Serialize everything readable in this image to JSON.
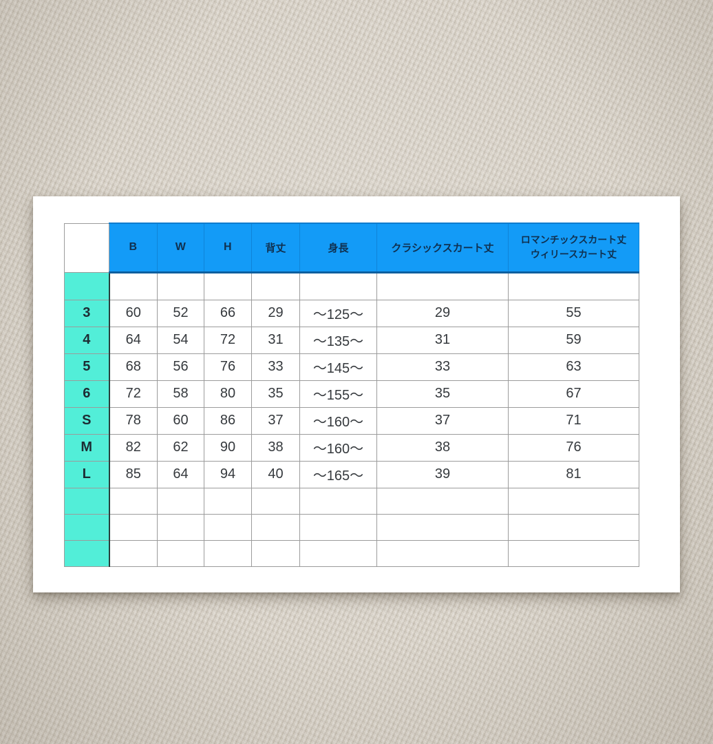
{
  "colors": {
    "background_fabric": "#d8d2c8",
    "card": "#ffffff",
    "header_blue": "#139bf7",
    "header_border_blue": "#0d5f9f",
    "header_text": "#10304f",
    "size_column_teal": "#52eed8",
    "grid_line": "#9b9b9b",
    "data_text": "#35393d"
  },
  "table": {
    "header": [
      "B",
      "W",
      "H",
      "背丈",
      "身長",
      "クラシックスカート丈"
    ],
    "header_last": {
      "line1": "ロマンチックスカート丈",
      "line2": "ウィリースカート丈"
    },
    "rows": [
      {
        "size": "3",
        "cells": [
          "60",
          "52",
          "66",
          "29",
          "〜125〜",
          "29",
          "55"
        ]
      },
      {
        "size": "4",
        "cells": [
          "64",
          "54",
          "72",
          "31",
          "〜135〜",
          "31",
          "59"
        ]
      },
      {
        "size": "5",
        "cells": [
          "68",
          "56",
          "76",
          "33",
          "〜145〜",
          "33",
          "63"
        ]
      },
      {
        "size": "6",
        "cells": [
          "72",
          "58",
          "80",
          "35",
          "〜155〜",
          "35",
          "67"
        ]
      },
      {
        "size": "S",
        "cells": [
          "78",
          "60",
          "86",
          "37",
          "〜160〜",
          "37",
          "71"
        ]
      },
      {
        "size": "M",
        "cells": [
          "82",
          "62",
          "90",
          "38",
          "〜160〜",
          "38",
          "76"
        ]
      },
      {
        "size": "L",
        "cells": [
          "85",
          "64",
          "94",
          "40",
          "〜165〜",
          "39",
          "81"
        ]
      }
    ]
  },
  "chart_data": {
    "type": "table",
    "columns": [
      "",
      "B",
      "W",
      "H",
      "背丈",
      "身長",
      "クラシックスカート丈",
      "ロマンチックスカート丈 ウィリースカート丈"
    ],
    "rows": [
      [
        "3",
        60,
        52,
        66,
        29,
        "〜125〜",
        29,
        55
      ],
      [
        "4",
        64,
        54,
        72,
        31,
        "〜135〜",
        31,
        59
      ],
      [
        "5",
        68,
        56,
        76,
        33,
        "〜145〜",
        33,
        63
      ],
      [
        "6",
        72,
        58,
        80,
        35,
        "〜155〜",
        35,
        67
      ],
      [
        "S",
        78,
        60,
        86,
        37,
        "〜160〜",
        37,
        71
      ],
      [
        "M",
        82,
        62,
        90,
        38,
        "〜160〜",
        38,
        76
      ],
      [
        "L",
        85,
        64,
        94,
        40,
        "〜165〜",
        39,
        81
      ]
    ],
    "layout_hints": {
      "header_fill": "#139bf7",
      "row_label_fill": "#52eed8",
      "empty_trailing_rows": 3,
      "empty_spacer_row_after_header": true
    }
  }
}
